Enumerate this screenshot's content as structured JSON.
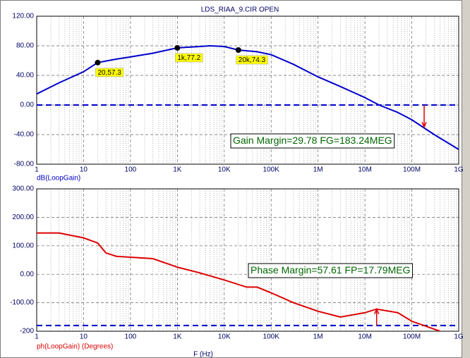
{
  "chart_data": [
    {
      "type": "line",
      "title": "LDS_RIAA_9.CIR OPEN",
      "xscale": "log",
      "x": [
        1,
        3,
        10,
        20,
        50,
        100,
        300,
        1000,
        3000,
        5000,
        10000,
        20000,
        50000,
        100000,
        300000,
        1000000,
        3000000,
        10000000,
        20000000,
        50000000,
        100000000,
        300000000,
        1000000000
      ],
      "series": [
        {
          "name": "dB(LoopGain)",
          "color": "#0000cc",
          "values": [
            15,
            30,
            45,
            57.3,
            62,
            65,
            70,
            77.2,
            79,
            80,
            79,
            74.3,
            72,
            68,
            55,
            38,
            25,
            10,
            0,
            -10,
            -20,
            -40,
            -60
          ]
        }
      ],
      "xlim": [
        1,
        1000000000
      ],
      "xticks": [
        1,
        10,
        100,
        {
          "value": 1000,
          "label": "1K"
        },
        {
          "value": 10000,
          "label": "10K"
        },
        {
          "value": 100000,
          "label": "100K"
        },
        {
          "value": 1000000,
          "label": "1M"
        },
        {
          "value": 10000000,
          "label": "10M"
        },
        {
          "value": 100000000,
          "label": "100M"
        },
        {
          "value": 1000000000,
          "label": "1G"
        }
      ],
      "ylim": [
        -80,
        120
      ],
      "yticks": [
        {
          "value": -80,
          "label": "-80.00"
        },
        {
          "value": -40,
          "label": "-40.00"
        },
        {
          "value": 0,
          "label": "0.00"
        },
        {
          "value": 40,
          "label": "40.00"
        },
        {
          "value": 80,
          "label": "80.00"
        },
        {
          "value": 120,
          "label": "120.00"
        }
      ],
      "grid": true,
      "reference_line": 0,
      "markers": [
        {
          "x": 20,
          "y": 57.3,
          "label": "20,57.3"
        },
        {
          "x": 1000,
          "y": 77.2,
          "label": "1k,77.2"
        },
        {
          "x": 20000,
          "y": 74.3,
          "label": "20k,74.3"
        }
      ],
      "margin_arrow": {
        "x": 183240000,
        "y": -29.78
      },
      "annotation": "Gain Margin=29.78 FG=183.24MEG"
    },
    {
      "type": "line",
      "xscale": "log",
      "x_label": "F (Hz)",
      "x": [
        1,
        3,
        10,
        20,
        30,
        50,
        100,
        300,
        1000,
        3000,
        10000,
        30000,
        50000,
        100000,
        300000,
        1000000,
        3000000,
        10000000,
        17790000,
        50000000,
        100000000,
        400000000
      ],
      "series": [
        {
          "name": "ph(LoopGain) (Degrees)",
          "color": "#dd0000",
          "values": [
            145,
            145,
            128,
            110,
            75,
            63,
            60,
            55,
            25,
            5,
            -20,
            -45,
            -45,
            -65,
            -100,
            -130,
            -150,
            -135,
            -122.39,
            -135,
            -165,
            -200
          ]
        }
      ],
      "xlim": [
        1,
        1000000000
      ],
      "xticks": [
        1,
        10,
        100,
        {
          "value": 1000,
          "label": "1K"
        },
        {
          "value": 10000,
          "label": "10K"
        },
        {
          "value": 100000,
          "label": "100K"
        },
        {
          "value": 1000000,
          "label": "1M"
        },
        {
          "value": 10000000,
          "label": "10M"
        },
        {
          "value": 100000000,
          "label": "100M"
        },
        {
          "value": 1000000000,
          "label": "1G"
        }
      ],
      "ylim": [
        -200,
        300
      ],
      "yticks": [
        {
          "value": -200,
          "label": "-200"
        },
        {
          "value": -100,
          "label": "-100.00"
        },
        {
          "value": 0,
          "label": "0.00"
        },
        {
          "value": 100,
          "label": "100.00"
        },
        {
          "value": 200,
          "label": "200.00"
        },
        {
          "value": 300,
          "label": "300.00"
        }
      ],
      "grid": true,
      "reference_line": -180,
      "margin_arrow": {
        "x": 17790000,
        "y": -122.39
      },
      "annotation": "Phase Margin=57.61 FP=17.79MEG"
    }
  ]
}
